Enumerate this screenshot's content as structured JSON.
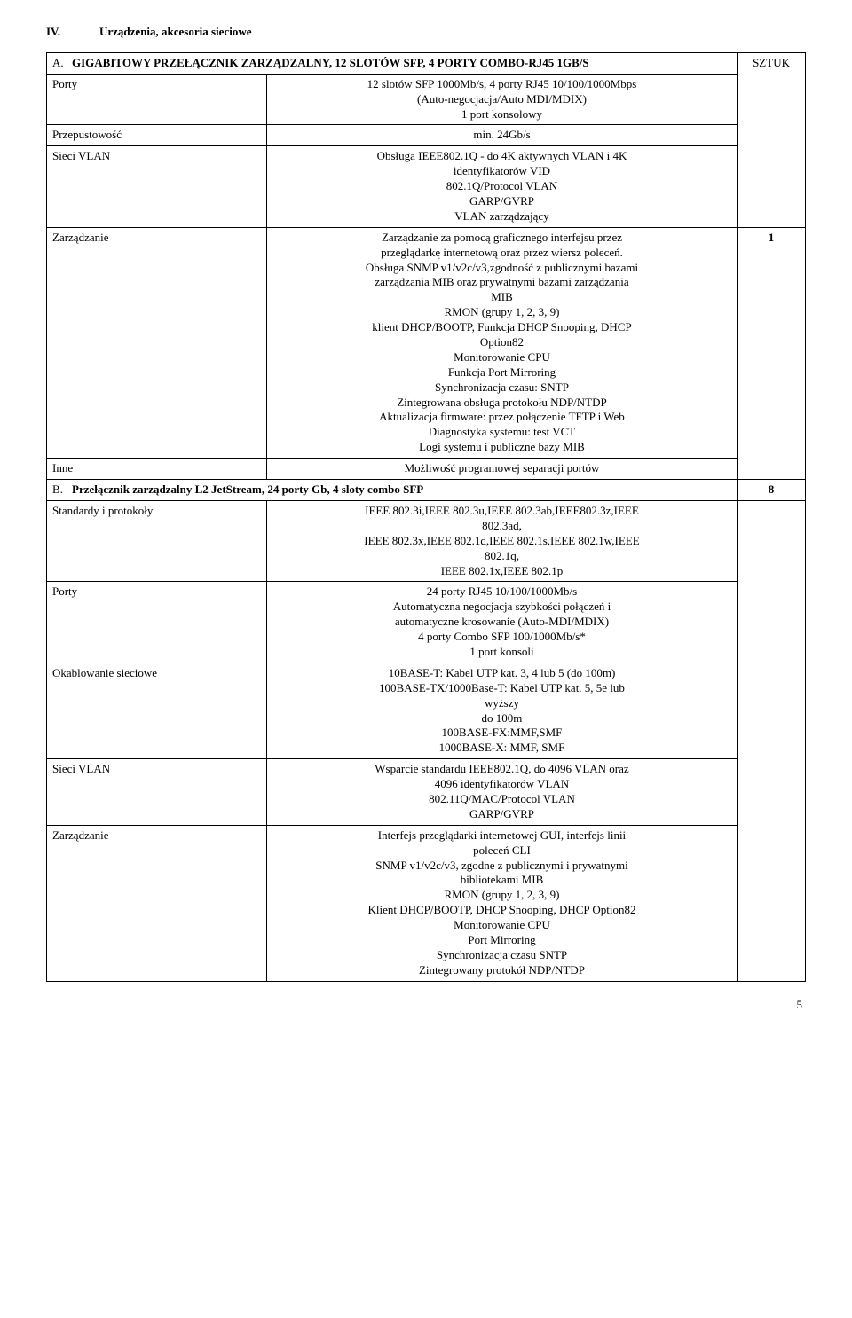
{
  "heading": {
    "roman": "IV.",
    "text": "Urządzenia, akcesoria sieciowe"
  },
  "sztuk_label": "SZTUK",
  "sectionA": {
    "letter": "A.",
    "title": "GIGABITOWY PRZEŁĄCZNIK ZARZĄDZALNY, 12 SLOTÓW SFP, 4 PORTY COMBO-RJ45 1GB/S",
    "rows": {
      "porty_label": "Porty",
      "porty_value": "12 slotów SFP 1000Mb/s, 4 porty RJ45 10/100/1000Mbps\n(Auto-negocjacja/Auto MDI/MDIX)\n1 port konsolowy",
      "przepustowosc_label": "Przepustowość",
      "przepustowosc_value": "min. 24Gb/s",
      "sieci_vlan_label": "Sieci VLAN",
      "sieci_vlan_value": "Obsługa IEEE802.1Q - do 4K aktywnych VLAN i 4K\nidentyfikatorów VID\n802.1Q/Protocol VLAN\nGARP/GVRP\nVLAN zarządzający",
      "zarzadzanie_label": "Zarządzanie",
      "zarzadzanie_value": "Zarządzanie za pomocą graficznego interfejsu przez\nprzeglądarkę internetową oraz przez wiersz poleceń.\nObsługa SNMP v1/v2c/v3,zgodność z publicznymi bazami\nzarządzania MIB oraz prywatnymi bazami zarządzania\nMIB\nRMON (grupy 1, 2, 3, 9)\nklient DHCP/BOOTP, Funkcja DHCP Snooping, DHCP\nOption82\nMonitorowanie CPU\nFunkcja Port Mirroring\nSynchronizacja czasu: SNTP\nZintegrowana obsługa protokołu NDP/NTDP\nAktualizacja firmware: przez połączenie TFTP i Web\nDiagnostyka systemu: test VCT\nLogi systemu i publiczne bazy MIB",
      "inne_label": "Inne",
      "inne_value": "Możliwość programowej separacji portów"
    },
    "qty": "1"
  },
  "sectionB": {
    "letter": "B.",
    "title": "Przełącznik zarządzalny L2 JetStream, 24 porty Gb, 4 sloty combo SFP",
    "qty": "8",
    "rows": {
      "standardy_label": "Standardy i protokoły",
      "standardy_value": "IEEE 802.3i,IEEE 802.3u,IEEE 802.3ab,IEEE802.3z,IEEE\n802.3ad,\nIEEE 802.3x,IEEE 802.1d,IEEE 802.1s,IEEE 802.1w,IEEE\n802.1q,\nIEEE 802.1x,IEEE 802.1p",
      "porty_label": "Porty",
      "porty_value": "24 porty RJ45 10/100/1000Mb/s\nAutomatyczna negocjacja szybkości połączeń i\nautomatyczne krosowanie (Auto-MDI/MDIX)\n4 porty Combo SFP 100/1000Mb/s*\n1 port konsoli",
      "okablowanie_label": "Okablowanie sieciowe",
      "okablowanie_value": "10BASE-T: Kabel UTP kat. 3, 4 lub 5 (do 100m)\n100BASE-TX/1000Base-T: Kabel UTP kat. 5, 5e lub\nwyższy\ndo 100m\n100BASE-FX:MMF,SMF\n1000BASE-X: MMF, SMF",
      "sieci_vlan_label": "Sieci VLAN",
      "sieci_vlan_value": "Wsparcie standardu IEEE802.1Q, do 4096 VLAN oraz\n4096 identyfikatorów VLAN\n802.11Q/MAC/Protocol VLAN\nGARP/GVRP",
      "zarzadzanie_label": "Zarządzanie",
      "zarzadzanie_value": "Interfejs przeglądarki internetowej GUI, interfejs linii\npoleceń CLI\nSNMP v1/v2c/v3, zgodne z publicznymi i prywatnymi\nbibliotekami MIB\nRMON (grupy 1, 2, 3, 9)\nKlient DHCP/BOOTP, DHCP Snooping, DHCP Option82\nMonitorowanie CPU\nPort Mirroring\nSynchronizacja czasu SNTP\nZintegrowany protokół NDP/NTDP"
    }
  },
  "page_number": "5"
}
